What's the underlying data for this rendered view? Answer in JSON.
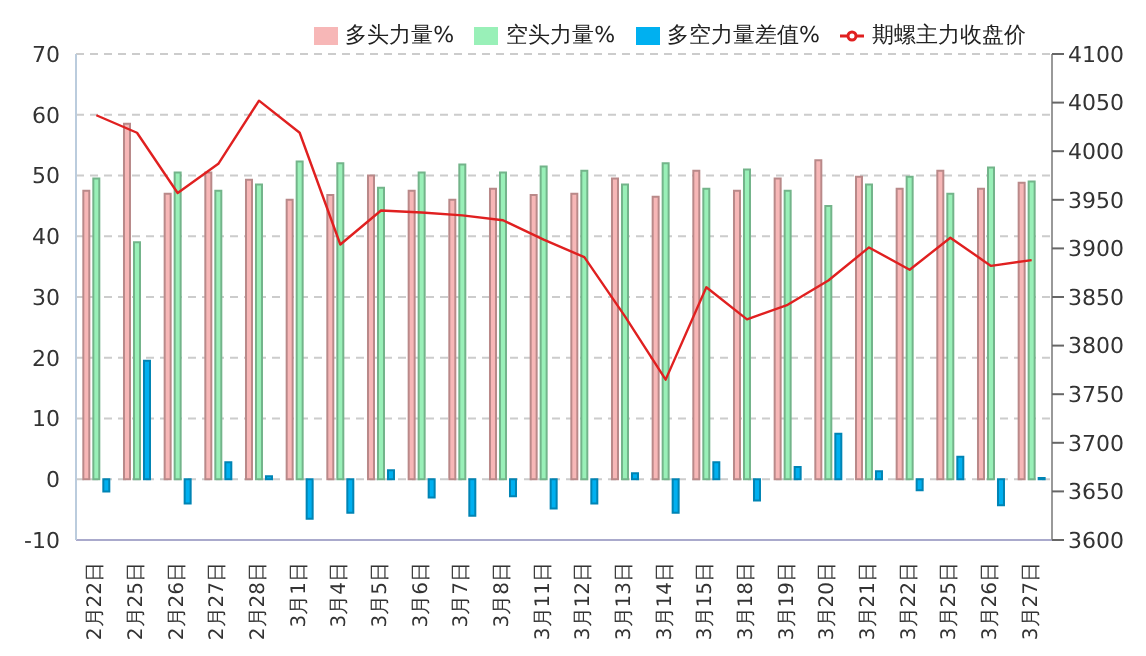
{
  "chart_data": {
    "type": "bar",
    "categories": [
      "2月22日",
      "2月25日",
      "2月26日",
      "2月27日",
      "2月28日",
      "3月1日",
      "3月4日",
      "3月5日",
      "3月6日",
      "3月7日",
      "3月8日",
      "3月11日",
      "3月12日",
      "3月13日",
      "3月14日",
      "3月15日",
      "3月18日",
      "3月19日",
      "3月20日",
      "3月21日",
      "3月22日",
      "3月25日",
      "3月26日",
      "3月27日"
    ],
    "series": [
      {
        "name": "多头力量%",
        "color": "#f7b7b7",
        "values": [
          47.5,
          58.5,
          47,
          50.5,
          49.3,
          46,
          46.8,
          50,
          47.5,
          46,
          47.8,
          46.8,
          47,
          49.5,
          46.5,
          50.8,
          47.5,
          49.5,
          52.5,
          49.8,
          47.8,
          50.8,
          47.8,
          48.8
        ]
      },
      {
        "name": "空头力量%",
        "color": "#99f0b8",
        "values": [
          49.5,
          39,
          50.5,
          47.5,
          48.5,
          52.3,
          52,
          48,
          50.5,
          51.8,
          50.5,
          51.5,
          50.8,
          48.5,
          52,
          47.8,
          51,
          47.5,
          45,
          48.5,
          49.8,
          47,
          51.3,
          49
        ]
      },
      {
        "name": "多空力量差值%",
        "color": "#00b0f0",
        "values": [
          -2,
          19.5,
          -4,
          2.8,
          0.5,
          -6.5,
          -5.5,
          1.5,
          -3,
          -6,
          -2.8,
          -4.8,
          -4,
          1,
          -5.5,
          2.8,
          -3.5,
          2,
          7.5,
          1.3,
          -1.8,
          3.7,
          -4.3,
          0.2
        ]
      },
      {
        "name": "期螺主力收盘价",
        "type": "line",
        "axis": "y2",
        "color": "#e02020",
        "values": [
          4037,
          4019,
          3957,
          3987,
          4052,
          4019,
          3904,
          3939,
          3937,
          3934,
          3929,
          3909,
          3891,
          3830,
          3765,
          3860,
          3827,
          3842,
          3867,
          3901,
          3878,
          3911,
          3882,
          3888
        ]
      }
    ],
    "ylim": [
      -10,
      70
    ],
    "yticks": [
      -10,
      0,
      10,
      20,
      30,
      40,
      50,
      60,
      70
    ],
    "y2lim": [
      3600,
      4100
    ],
    "y2ticks": [
      3600,
      3650,
      3700,
      3750,
      3800,
      3850,
      3900,
      3950,
      4000,
      4050,
      4100
    ],
    "grid": "y",
    "legend": "top right",
    "marker": "none",
    "line_style": "solid"
  }
}
